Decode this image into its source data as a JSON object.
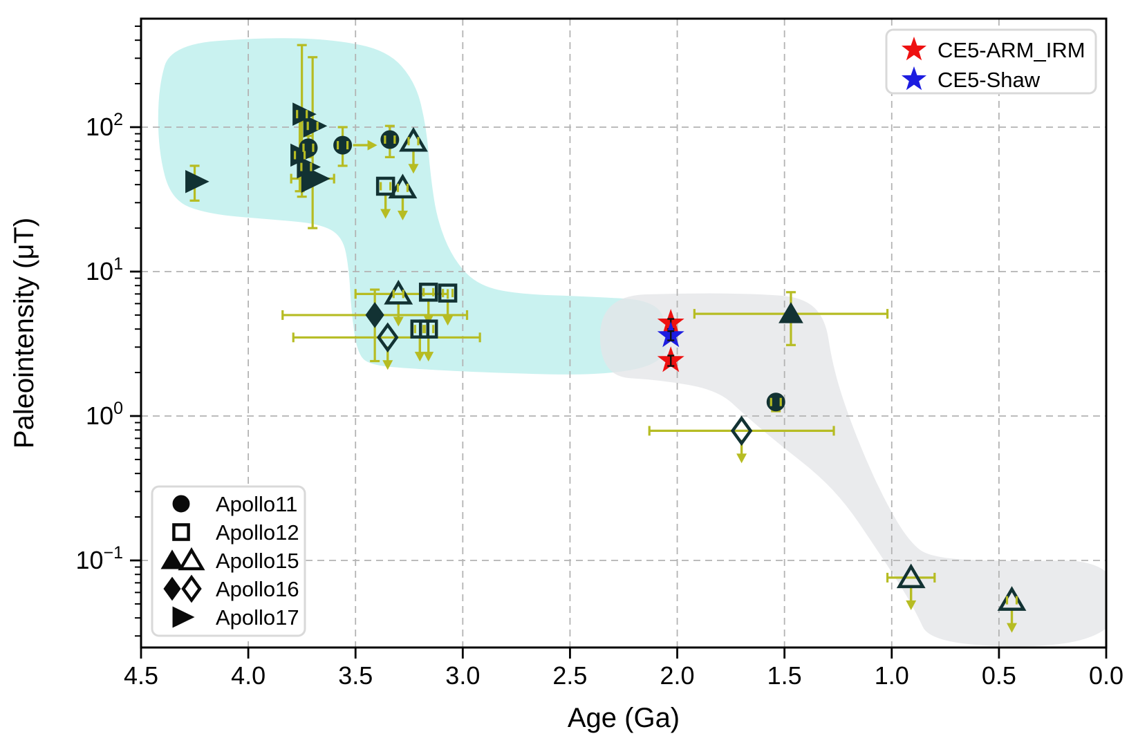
{
  "chart_data": {
    "type": "scatter",
    "title": "",
    "xlabel": "Age (Ga)",
    "ylabel": "Paleointensity (μT)",
    "x_axis": {
      "tick_values": [
        4.5,
        4.0,
        3.5,
        3.0,
        2.5,
        2.0,
        1.5,
        1.0,
        0.5,
        0.0
      ],
      "range": [
        4.5,
        0.0
      ],
      "direction": "reversed",
      "grid": true
    },
    "y_axis": {
      "scale": "log",
      "tick_values": [
        0.1,
        1,
        10,
        100
      ],
      "tick_exponents": [
        "−1",
        "0",
        "1",
        "2"
      ],
      "range": [
        0.025,
        590
      ],
      "grid": true
    },
    "colors": {
      "errorbar": "#b6bc23",
      "marker": "#123233",
      "red_star": "#ee1111",
      "blue_star": "#1d1de0",
      "region_high": "#c9f2f0",
      "region_low": "#e4e5e8",
      "grid": "#b3b3b3",
      "legend_border": "#d9d9d9"
    },
    "series": [
      {
        "name": "Apollo17",
        "marker": "triangle-right",
        "fill": "filled",
        "points": [
          {
            "age": 4.25,
            "v": 42,
            "yerr": [
              31,
              54
            ]
          },
          {
            "age": 3.75,
            "v": 123,
            "yerr": [
              33,
              370
            ],
            "tiny": true
          },
          {
            "age": 3.7,
            "v": 102,
            "yerr": [
              20,
              305
            ],
            "tiny": true
          },
          {
            "age": 3.76,
            "v": 64,
            "yerr": [
              36,
              110
            ],
            "tiny": true
          },
          {
            "age": 3.73,
            "v": 53,
            "tiny": true
          },
          {
            "age": 3.7,
            "v": 44,
            "xerr": [
              3.8,
              3.6
            ],
            "big": true
          }
        ]
      },
      {
        "name": "Apollo11",
        "marker": "circle",
        "fill": "filled",
        "points": [
          {
            "age": 3.72,
            "v": 72,
            "yerr": [
              62,
              87
            ],
            "tiny": true
          },
          {
            "age": 3.56,
            "v": 75,
            "yerr": [
              54,
              100
            ],
            "age_arrow": true,
            "tiny": true
          },
          {
            "age": 3.34,
            "v": 82,
            "yerr": [
              62,
              102
            ],
            "tiny": true
          },
          {
            "age": 1.54,
            "v": 1.25,
            "yerr": [
              1.08,
              1.38
            ],
            "tiny": true
          }
        ]
      },
      {
        "name": "Apollo12",
        "marker": "square",
        "fill": "open",
        "points": [
          {
            "age": 3.36,
            "v": 39,
            "ul": true,
            "tiny": true
          },
          {
            "age": 3.16,
            "v": 7.2,
            "ul": true,
            "tiny": true
          },
          {
            "age": 3.07,
            "v": 7.1,
            "ul": true,
            "tiny": true
          },
          {
            "age": 3.2,
            "v": 4.0,
            "ul": true,
            "tiny": true
          },
          {
            "age": 3.16,
            "v": 4.0,
            "ul": true,
            "tiny": true
          }
        ]
      },
      {
        "name": "Apollo15",
        "marker": "triangle",
        "fill": "filled",
        "points": [
          {
            "age": 1.47,
            "v": 5.1,
            "yerr": [
              3.1,
              7.2
            ],
            "xerr": [
              1.92,
              1.02
            ]
          }
        ]
      },
      {
        "name": "Apollo15",
        "marker": "triangle",
        "fill": "open",
        "points": [
          {
            "age": 3.23,
            "v": 80,
            "ul": true,
            "tiny": true
          },
          {
            "age": 3.28,
            "v": 38,
            "ul": true,
            "tiny": true
          },
          {
            "age": 3.3,
            "v": 7.0,
            "ul": true,
            "xerr": [
              3.5,
              3.07
            ],
            "tiny": true
          },
          {
            "age": 0.91,
            "v": 0.076,
            "ul": true,
            "xerr": [
              1.02,
              0.8
            ]
          },
          {
            "age": 0.44,
            "v": 0.053,
            "ul": true,
            "tiny": true
          }
        ]
      },
      {
        "name": "Apollo16",
        "marker": "diamond",
        "fill": "filled",
        "points": [
          {
            "age": 3.41,
            "v": 5.0,
            "yerr": [
              2.4,
              7.5
            ],
            "xerr": [
              3.84,
              2.98
            ]
          }
        ]
      },
      {
        "name": "Apollo16",
        "marker": "diamond",
        "fill": "open",
        "points": [
          {
            "age": 3.35,
            "v": 3.5,
            "ul": true,
            "xerr": [
              3.79,
              2.92
            ]
          },
          {
            "age": 1.7,
            "v": 0.79,
            "ul": true,
            "xerr": [
              2.13,
              1.27
            ]
          }
        ]
      },
      {
        "name": "CE5-ARM_IRM",
        "marker": "star",
        "fill": "filled",
        "color": "#ee1111",
        "points": [
          {
            "age": 2.03,
            "v": 4.4,
            "yerr": [
              4.0,
              4.7
            ]
          },
          {
            "age": 2.03,
            "v": 2.42,
            "yerr": [
              2.22,
              2.62
            ]
          }
        ]
      },
      {
        "name": "CE5-Shaw",
        "marker": "star",
        "fill": "filled",
        "color": "#1d1de0",
        "points": [
          {
            "age": 2.03,
            "v": 3.6,
            "yerr": [
              3.34,
              3.87
            ]
          }
        ]
      }
    ],
    "regions": [
      {
        "name": "high-field-epoch",
        "color": "#c9f2f0",
        "opacity": 1,
        "points": [
          [
            4.42,
            188
          ],
          [
            4.36,
            374
          ],
          [
            3.93,
            418
          ],
          [
            3.61,
            406
          ],
          [
            3.35,
            340
          ],
          [
            3.22,
            205
          ],
          [
            3.17,
            101
          ],
          [
            3.15,
            45.5
          ],
          [
            3.12,
            23
          ],
          [
            3.05,
            12.6
          ],
          [
            2.94,
            8.2
          ],
          [
            2.76,
            7.0
          ],
          [
            2.39,
            6.7
          ],
          [
            2.1,
            6.3
          ],
          [
            2.04,
            4.0
          ],
          [
            2.06,
            2.3
          ],
          [
            2.36,
            1.9
          ],
          [
            2.9,
            2.0
          ],
          [
            3.23,
            2.12
          ],
          [
            3.42,
            2.24
          ],
          [
            3.49,
            2.62
          ],
          [
            3.52,
            5.3
          ],
          [
            3.53,
            10.3
          ],
          [
            3.56,
            17.6
          ],
          [
            3.67,
            21.5
          ],
          [
            3.9,
            23
          ],
          [
            4.19,
            25
          ],
          [
            4.36,
            31.3
          ],
          [
            4.42,
            69.4
          ]
        ]
      },
      {
        "name": "low-field-epoch",
        "color": "#e4e5e8",
        "opacity": 0.78,
        "points": [
          [
            2.36,
            6.8
          ],
          [
            1.93,
            7.1
          ],
          [
            1.61,
            7.0
          ],
          [
            1.41,
            6.6
          ],
          [
            1.31,
            4.76
          ],
          [
            1.28,
            2.45
          ],
          [
            1.23,
            1.32
          ],
          [
            1.14,
            0.58
          ],
          [
            1.03,
            0.255
          ],
          [
            0.92,
            0.136
          ],
          [
            0.82,
            0.104
          ],
          [
            0.48,
            0.0985
          ],
          [
            -0.06,
            0.101
          ],
          [
            -0.06,
            0.026
          ],
          [
            0.81,
            0.025
          ],
          [
            0.9,
            0.048
          ],
          [
            0.99,
            0.079
          ],
          [
            1.1,
            0.139
          ],
          [
            1.21,
            0.242
          ],
          [
            1.34,
            0.39
          ],
          [
            1.52,
            0.63
          ],
          [
            1.68,
            1.0
          ],
          [
            1.81,
            1.51
          ],
          [
            2.08,
            1.78
          ],
          [
            2.36,
            1.88
          ]
        ]
      }
    ],
    "legend_ce5": {
      "items": [
        {
          "label": "CE5-ARM_IRM",
          "color": "#ee1111",
          "marker": "star"
        },
        {
          "label": "CE5-Shaw",
          "color": "#1d1de0",
          "marker": "star"
        }
      ]
    },
    "legend_missions": {
      "items": [
        {
          "label": "Apollo11",
          "markers": [
            "circle-filled"
          ]
        },
        {
          "label": "Apollo12",
          "markers": [
            "square-open"
          ]
        },
        {
          "label": "Apollo15",
          "markers": [
            "triangle-filled",
            "triangle-open"
          ]
        },
        {
          "label": "Apollo16",
          "markers": [
            "diamond-filled",
            "diamond-open"
          ]
        },
        {
          "label": "Apollo17",
          "markers": [
            "triangle-right-filled"
          ]
        }
      ]
    }
  }
}
